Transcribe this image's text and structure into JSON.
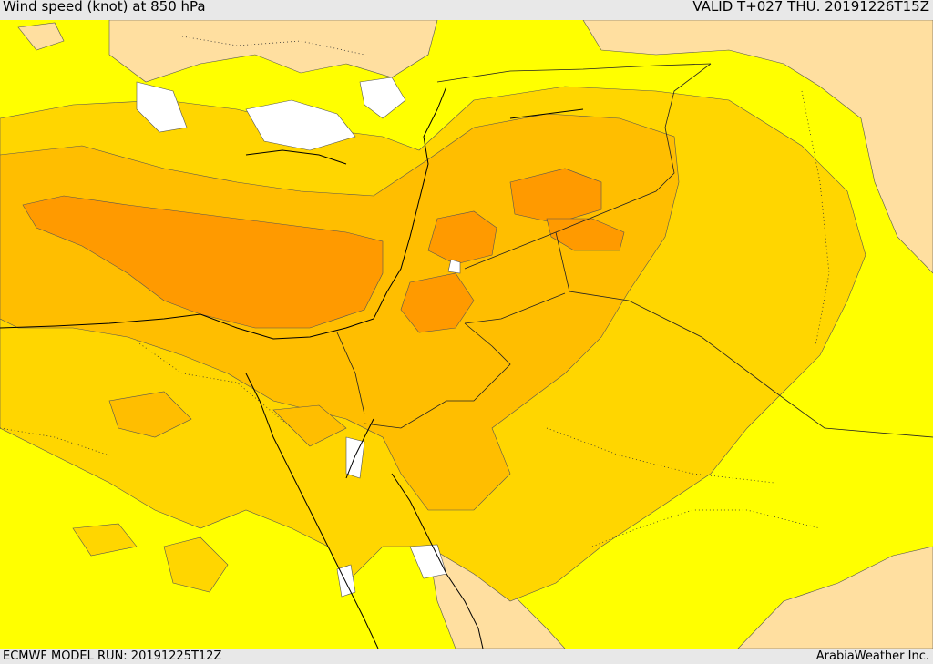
{
  "header": {
    "title": "Wind speed (knot) at 850 hPa",
    "valid_time": "VALID T+027 THU. 20191226T15Z"
  },
  "footer": {
    "model_run": "ECMWF MODEL RUN: 20191225T12Z",
    "credit": "ArabiaWeather Inc."
  },
  "palette": {
    "white": "#ffffff",
    "cream": "#ffdfa0",
    "yellow": "#ffff00",
    "gold": "#ffd600",
    "amber": "#ffbe00",
    "orange": "#ff9a00"
  }
}
